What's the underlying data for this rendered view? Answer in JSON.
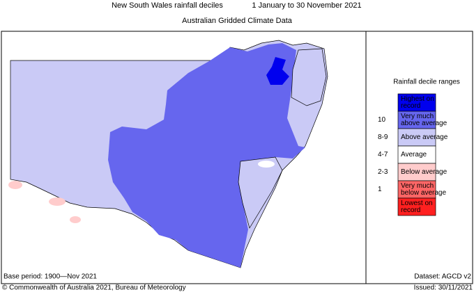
{
  "header": {
    "title": "New South Wales rainfall deciles",
    "period": "1 January to 30 November 2021",
    "subtitle": "Australian Gridded Climate Data"
  },
  "legend": {
    "title": "Rainfall decile ranges",
    "items": [
      {
        "label": [
          "Highest on",
          "record"
        ],
        "color": "#0000ee"
      },
      {
        "range": "10",
        "label": [
          "Very much",
          "above average"
        ],
        "color": "#6666ee"
      },
      {
        "range": "8-9",
        "label": [
          "Above average"
        ],
        "color": "#cacaf6"
      },
      {
        "range": "4-7",
        "label": [
          "Average"
        ],
        "color": "#ffffff"
      },
      {
        "range": "2-3",
        "label": [
          "Below average"
        ],
        "color": "#ffcccc"
      },
      {
        "range": "1",
        "label": [
          "Very much",
          "below average"
        ],
        "color": "#ff6666"
      },
      {
        "label": [
          "Lowest on",
          "record"
        ],
        "color": "#ff2020"
      }
    ]
  },
  "footer": {
    "base_period": "Base period: 1900—Nov 2021",
    "dataset": "Dataset: AGCD v2",
    "copyright": "© Commonwealth of Australia 2021, Bureau of Meteorology",
    "issued": "Issued: 30/11/2021"
  }
}
